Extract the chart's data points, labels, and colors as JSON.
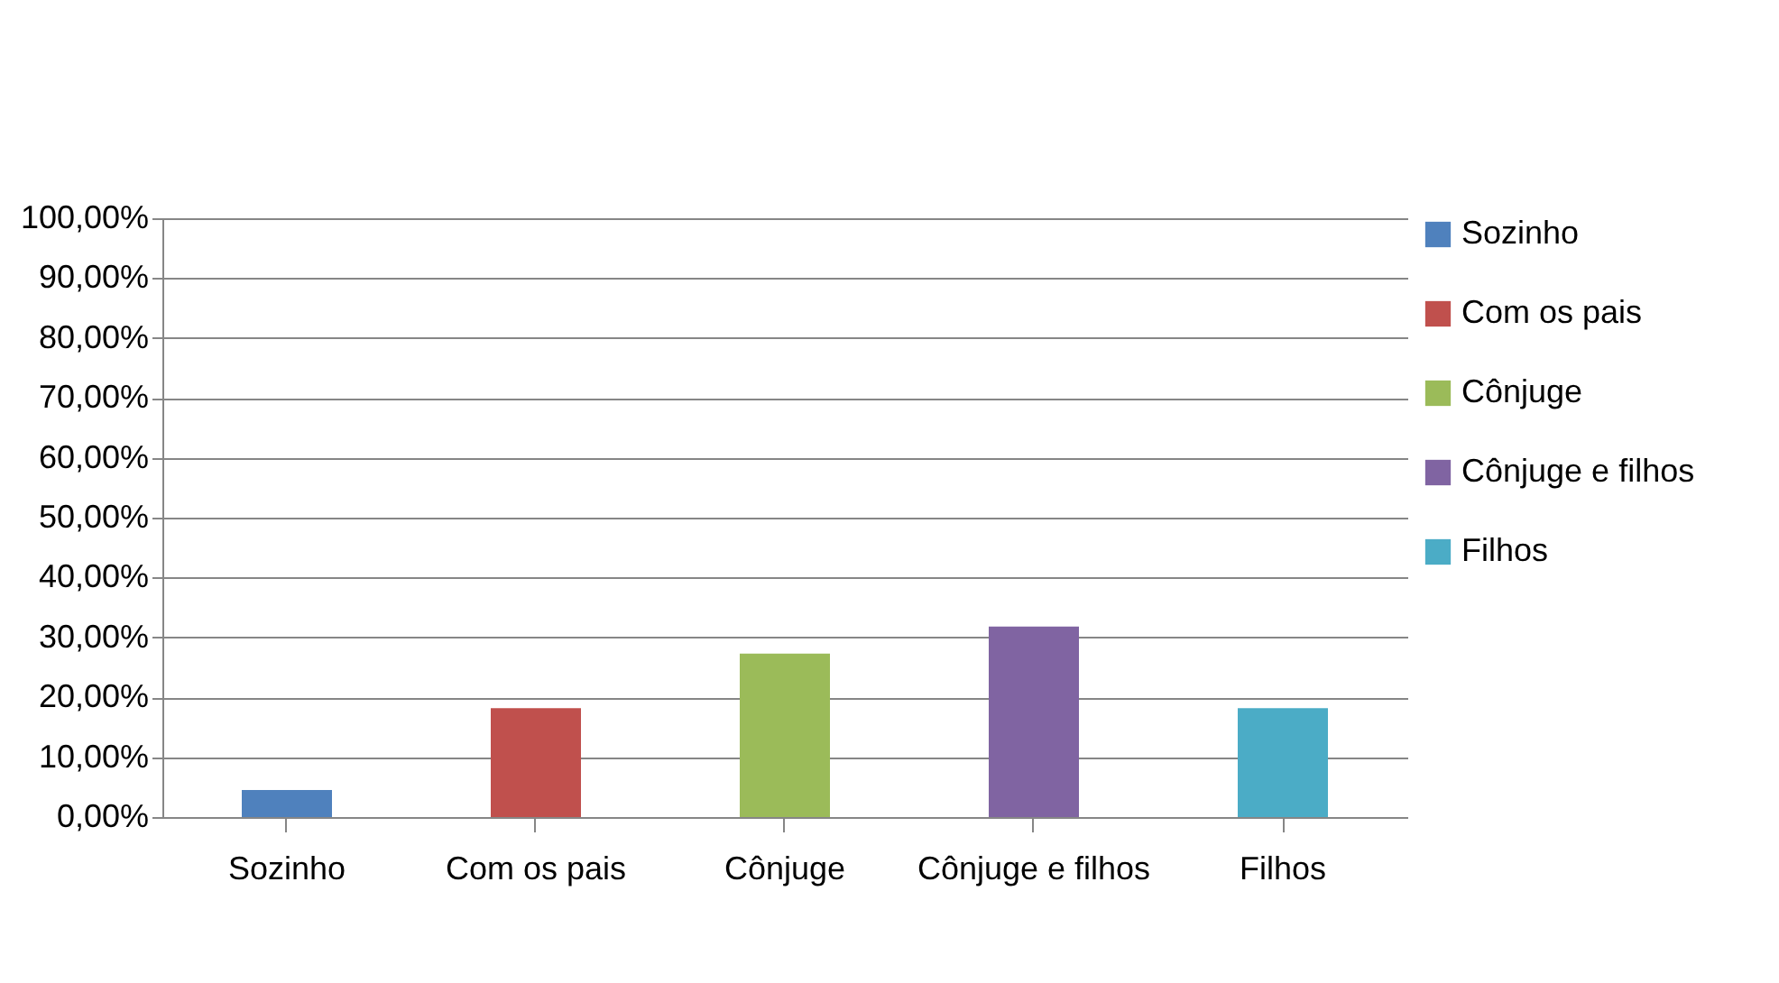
{
  "chart_data": {
    "type": "bar",
    "categories": [
      "Sozinho",
      "Com os pais",
      "Cônjuge",
      "Cônjuge e filhos",
      "Filhos"
    ],
    "series": [
      {
        "name": "Sozinho",
        "color": "#4f81bd",
        "values": [
          4.5,
          null,
          null,
          null,
          null
        ]
      },
      {
        "name": "Com os pais",
        "color": "#c0504d",
        "values": [
          null,
          18.2,
          null,
          null,
          null
        ]
      },
      {
        "name": "Cônjuge",
        "color": "#9bbb59",
        "values": [
          null,
          null,
          27.3,
          null,
          null
        ]
      },
      {
        "name": "Cônjuge e filhos",
        "color": "#8064a2",
        "values": [
          null,
          null,
          null,
          31.8,
          null
        ]
      },
      {
        "name": "Filhos",
        "color": "#4bacc6",
        "values": [
          null,
          null,
          null,
          null,
          18.2
        ]
      }
    ],
    "ylim": [
      0,
      100
    ],
    "yticks": [
      {
        "value": 0,
        "label": "0,00%"
      },
      {
        "value": 10,
        "label": "10,00%"
      },
      {
        "value": 20,
        "label": "20,00%"
      },
      {
        "value": 30,
        "label": "30,00%"
      },
      {
        "value": 40,
        "label": "40,00%"
      },
      {
        "value": 50,
        "label": "50,00%"
      },
      {
        "value": 60,
        "label": "60,00%"
      },
      {
        "value": 70,
        "label": "70,00%"
      },
      {
        "value": 80,
        "label": "80,00%"
      },
      {
        "value": 90,
        "label": "90,00%"
      },
      {
        "value": 100,
        "label": "100,00%"
      }
    ],
    "grid": "y",
    "legend": "right"
  }
}
